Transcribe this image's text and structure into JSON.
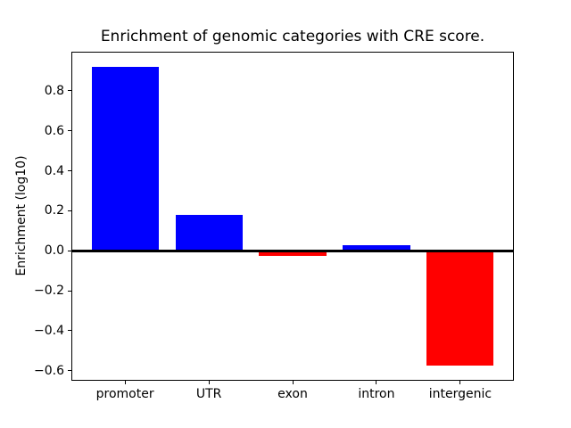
{
  "figure": {
    "title": "Enrichment of genomic categories with CRE score.",
    "ylabel": "Enrichment (log10)"
  },
  "chart_data": {
    "type": "bar",
    "title": "Enrichment of genomic categories with CRE score.",
    "xlabel": "",
    "ylabel": "Enrichment (log10)",
    "categories": [
      "promoter",
      "UTR",
      "exon",
      "intron",
      "intergenic"
    ],
    "values": [
      0.92,
      0.18,
      -0.025,
      0.03,
      -0.575
    ],
    "bar_colors": [
      "#0000ff",
      "#0000ff",
      "#ff0000",
      "#0000ff",
      "#ff0000"
    ],
    "bar_width": 0.8,
    "ylim": [
      -0.65,
      0.995
    ],
    "xlim": [
      -0.64,
      4.64
    ],
    "yticks": [
      {
        "v": 0.8,
        "label": "0.8"
      },
      {
        "v": 0.6,
        "label": "0.6"
      },
      {
        "v": 0.4,
        "label": "0.4"
      },
      {
        "v": 0.2,
        "label": "0.2"
      },
      {
        "v": 0.0,
        "label": "0.0"
      },
      {
        "v": -0.2,
        "label": "−0.2"
      },
      {
        "v": -0.4,
        "label": "−0.4"
      },
      {
        "v": -0.6,
        "label": "−0.6"
      }
    ],
    "zero_line": {
      "y": 0,
      "color": "#000000"
    },
    "grid": false,
    "legend": null,
    "colors": {
      "positive": "#0000ff",
      "negative": "#ff0000",
      "axis": "#000000",
      "background": "#ffffff"
    }
  }
}
